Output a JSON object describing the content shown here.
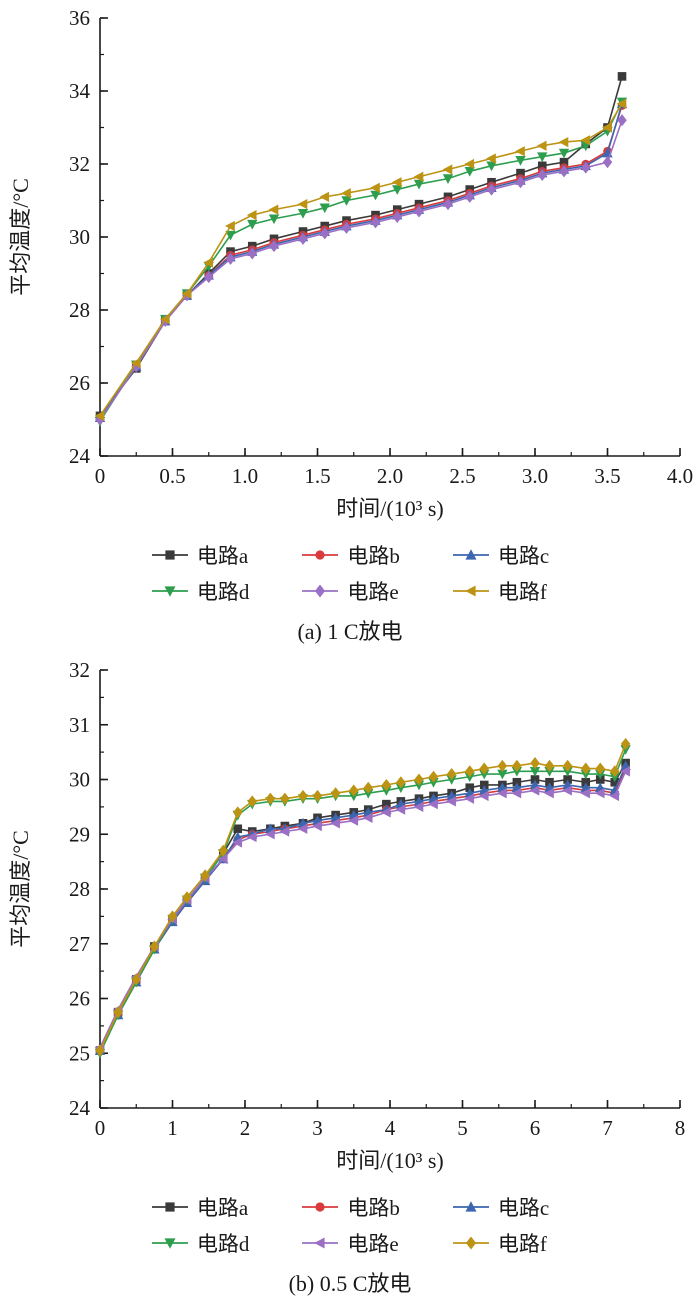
{
  "chart_data": [
    {
      "key": "a",
      "type": "line",
      "caption": "(a) 1 C放电",
      "xlabel": "时间/(10³ s)",
      "ylabel": "平均温度/°C",
      "xlim": [
        0,
        4.0
      ],
      "ylim": [
        24,
        36
      ],
      "xticks": [
        0,
        0.5,
        1.0,
        1.5,
        2.0,
        2.5,
        3.0,
        3.5,
        4.0
      ],
      "xtick_labels": [
        "0",
        "0.5",
        "1.0",
        "1.5",
        "2.0",
        "2.5",
        "3.0",
        "3.5",
        "4.0"
      ],
      "yticks": [
        24,
        26,
        28,
        30,
        32,
        34,
        36
      ],
      "ytick_labels": [
        "24",
        "26",
        "28",
        "30",
        "32",
        "34",
        "36"
      ],
      "x_minor_step": 0.25,
      "y_minor_step": 1,
      "grid": false,
      "legend_position": "below",
      "x": [
        0,
        0.25,
        0.45,
        0.6,
        0.75,
        0.9,
        1.05,
        1.2,
        1.4,
        1.55,
        1.7,
        1.9,
        2.05,
        2.2,
        2.4,
        2.55,
        2.7,
        2.9,
        3.05,
        3.2,
        3.35,
        3.5,
        3.6
      ],
      "series": [
        {
          "key": "a",
          "name": "电路a",
          "color": "#3a3a3a",
          "marker": "square",
          "values": [
            25.1,
            26.4,
            27.7,
            28.4,
            29.0,
            29.6,
            29.75,
            29.95,
            30.15,
            30.3,
            30.45,
            30.6,
            30.75,
            30.9,
            31.1,
            31.3,
            31.5,
            31.75,
            31.95,
            32.05,
            32.55,
            33.0,
            34.4
          ]
        },
        {
          "key": "b",
          "name": "电路b",
          "color": "#d93a3e",
          "marker": "circle",
          "values": [
            25.05,
            26.45,
            27.7,
            28.4,
            28.95,
            29.5,
            29.65,
            29.85,
            30.05,
            30.2,
            30.35,
            30.5,
            30.65,
            30.8,
            31.0,
            31.2,
            31.4,
            31.6,
            31.8,
            31.9,
            32.0,
            32.35,
            33.6
          ]
        },
        {
          "key": "c",
          "name": "电路c",
          "color": "#3c66b0",
          "marker": "triangle-up",
          "values": [
            25.05,
            26.45,
            27.7,
            28.4,
            28.95,
            29.45,
            29.6,
            29.8,
            30.0,
            30.15,
            30.3,
            30.45,
            30.6,
            30.75,
            30.95,
            31.15,
            31.35,
            31.55,
            31.75,
            31.85,
            31.95,
            32.3,
            33.65
          ]
        },
        {
          "key": "d",
          "name": "电路d",
          "color": "#2d9e4e",
          "marker": "triangle-down",
          "values": [
            24.95,
            26.5,
            27.75,
            28.45,
            29.2,
            30.05,
            30.35,
            30.5,
            30.65,
            30.8,
            31.0,
            31.15,
            31.3,
            31.45,
            31.6,
            31.8,
            31.95,
            32.1,
            32.2,
            32.3,
            32.5,
            32.9,
            33.7
          ]
        },
        {
          "key": "e",
          "name": "电路e",
          "color": "#9a6fc4",
          "marker": "diamond",
          "values": [
            25.0,
            26.45,
            27.7,
            28.4,
            28.9,
            29.4,
            29.55,
            29.75,
            29.95,
            30.1,
            30.25,
            30.4,
            30.55,
            30.7,
            30.9,
            31.1,
            31.3,
            31.5,
            31.7,
            31.8,
            31.9,
            32.05,
            33.2
          ]
        },
        {
          "key": "f",
          "name": "电路f",
          "color": "#bd9314",
          "marker": "triangle-left",
          "values": [
            25.1,
            26.55,
            27.75,
            28.45,
            29.3,
            30.3,
            30.6,
            30.75,
            30.9,
            31.1,
            31.2,
            31.35,
            31.5,
            31.65,
            31.85,
            32.0,
            32.15,
            32.35,
            32.5,
            32.6,
            32.65,
            33.0,
            33.65
          ]
        }
      ]
    },
    {
      "key": "b",
      "type": "line",
      "caption": "(b) 0.5 C放电",
      "xlabel": "时间/(10³ s)",
      "ylabel": "平均温度/°C",
      "xlim": [
        0,
        8
      ],
      "ylim": [
        24,
        32
      ],
      "xticks": [
        0,
        1,
        2,
        3,
        4,
        5,
        6,
        7,
        8
      ],
      "xtick_labels": [
        "0",
        "1",
        "2",
        "3",
        "4",
        "5",
        "6",
        "7",
        "8"
      ],
      "yticks": [
        24,
        25,
        26,
        27,
        28,
        29,
        30,
        31,
        32
      ],
      "ytick_labels": [
        "24",
        "25",
        "26",
        "27",
        "28",
        "29",
        "30",
        "31",
        "32"
      ],
      "x_minor_step": 0.5,
      "y_minor_step": 0.5,
      "grid": false,
      "legend_position": "below",
      "x": [
        0,
        0.25,
        0.5,
        0.75,
        1.0,
        1.2,
        1.45,
        1.7,
        1.9,
        2.1,
        2.35,
        2.55,
        2.8,
        3.0,
        3.25,
        3.5,
        3.7,
        3.95,
        4.15,
        4.4,
        4.6,
        4.85,
        5.1,
        5.3,
        5.55,
        5.75,
        6.0,
        6.2,
        6.45,
        6.7,
        6.9,
        7.1,
        7.25
      ],
      "series": [
        {
          "key": "a",
          "name": "电路a",
          "color": "#3a3a3a",
          "marker": "square",
          "values": [
            25.05,
            25.75,
            26.35,
            26.95,
            27.45,
            27.8,
            28.2,
            28.65,
            29.1,
            29.05,
            29.1,
            29.15,
            29.2,
            29.3,
            29.35,
            29.4,
            29.45,
            29.55,
            29.6,
            29.65,
            29.7,
            29.75,
            29.85,
            29.9,
            29.9,
            29.95,
            30.0,
            29.95,
            30.0,
            29.95,
            30.0,
            29.95,
            30.3
          ]
        },
        {
          "key": "b",
          "name": "电路b",
          "color": "#d93a3e",
          "marker": "circle",
          "values": [
            25.05,
            25.7,
            26.3,
            26.9,
            27.4,
            27.75,
            28.15,
            28.55,
            28.9,
            29.0,
            29.05,
            29.1,
            29.15,
            29.2,
            29.25,
            29.3,
            29.35,
            29.45,
            29.5,
            29.55,
            29.6,
            29.65,
            29.7,
            29.75,
            29.8,
            29.8,
            29.85,
            29.8,
            29.85,
            29.8,
            29.8,
            29.75,
            30.2
          ]
        },
        {
          "key": "c",
          "name": "电路c",
          "color": "#3c66b0",
          "marker": "triangle-up",
          "values": [
            25.05,
            25.7,
            26.3,
            26.9,
            27.4,
            27.75,
            28.15,
            28.55,
            28.95,
            29.0,
            29.1,
            29.1,
            29.2,
            29.25,
            29.3,
            29.35,
            29.4,
            29.45,
            29.55,
            29.6,
            29.65,
            29.7,
            29.75,
            29.8,
            29.85,
            29.85,
            29.9,
            29.85,
            29.9,
            29.85,
            29.85,
            29.8,
            30.25
          ]
        },
        {
          "key": "d",
          "name": "电路d",
          "color": "#2d9e4e",
          "marker": "triangle-down",
          "values": [
            25.0,
            25.7,
            26.3,
            26.9,
            27.45,
            27.8,
            28.2,
            28.65,
            29.35,
            29.55,
            29.6,
            29.6,
            29.65,
            29.65,
            29.7,
            29.7,
            29.75,
            29.8,
            29.85,
            29.9,
            29.95,
            30.0,
            30.05,
            30.1,
            30.1,
            30.15,
            30.15,
            30.15,
            30.15,
            30.1,
            30.1,
            30.05,
            30.55
          ]
        },
        {
          "key": "e",
          "name": "电路e",
          "color": "#9a6fc4",
          "marker": "triangle-left",
          "values": [
            25.1,
            25.8,
            26.4,
            26.95,
            27.45,
            27.8,
            28.2,
            28.55,
            28.85,
            28.95,
            29.0,
            29.05,
            29.1,
            29.15,
            29.2,
            29.25,
            29.3,
            29.4,
            29.45,
            29.5,
            29.55,
            29.6,
            29.65,
            29.7,
            29.75,
            29.75,
            29.8,
            29.75,
            29.8,
            29.75,
            29.75,
            29.7,
            30.15
          ]
        },
        {
          "key": "f",
          "name": "电路f",
          "color": "#bd9314",
          "marker": "diamond",
          "values": [
            25.05,
            25.75,
            26.35,
            26.95,
            27.5,
            27.85,
            28.25,
            28.7,
            29.4,
            29.6,
            29.65,
            29.65,
            29.7,
            29.7,
            29.75,
            29.8,
            29.85,
            29.9,
            29.95,
            30.0,
            30.05,
            30.1,
            30.15,
            30.2,
            30.25,
            30.25,
            30.3,
            30.25,
            30.25,
            30.2,
            30.2,
            30.15,
            30.65
          ]
        }
      ]
    }
  ]
}
